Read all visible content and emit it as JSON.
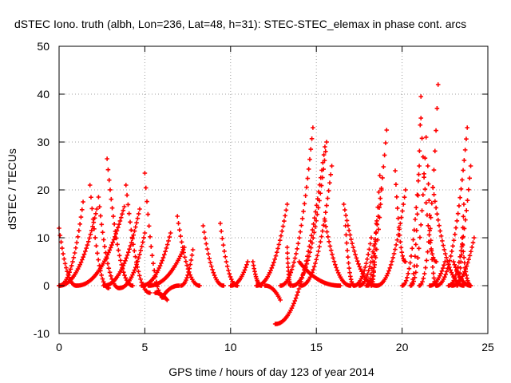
{
  "chart_data": {
    "type": "scatter",
    "title": "dSTEC Iono. truth (albh, Lon=236, Lat=48, h=31): STEC-STEC_elemax in phase cont. arcs",
    "xlabel": "GPS time / hours of day 123 of year 2014",
    "ylabel": "dSTEC  / TECUs",
    "xlim": [
      0,
      25
    ],
    "ylim": [
      -10,
      50
    ],
    "xticks": [
      0,
      5,
      10,
      15,
      20,
      25
    ],
    "yticks": [
      -10,
      0,
      10,
      20,
      30,
      40,
      50
    ],
    "grid": true,
    "marker": "+",
    "series_color": "#ff0000",
    "arcs": [
      [
        0.0,
        12,
        1.0,
        0
      ],
      [
        0.0,
        0,
        1.4,
        17.5
      ],
      [
        0.0,
        0,
        2.2,
        16
      ],
      [
        1.8,
        21,
        2.9,
        -0.5
      ],
      [
        1.0,
        0,
        3.8,
        16.5
      ],
      [
        2.3,
        18.5,
        3.5,
        -0.5
      ],
      [
        2.8,
        26.5,
        4.3,
        0
      ],
      [
        2.6,
        0,
        4.7,
        16
      ],
      [
        3.9,
        21,
        5.3,
        -1.5
      ],
      [
        3.5,
        -0.5,
        5.0,
        11
      ],
      [
        5.0,
        23.5,
        6.1,
        -2.5
      ],
      [
        4.8,
        0,
        6.5,
        11
      ],
      [
        5.2,
        0,
        7.3,
        8
      ],
      [
        6.9,
        14.5,
        8.2,
        0
      ],
      [
        5.6,
        -1.5,
        6.3,
        -3
      ],
      [
        6.0,
        -2.5,
        7.0,
        0
      ],
      [
        7.1,
        0,
        7.8,
        7.5
      ],
      [
        8.4,
        12.5,
        9.6,
        0
      ],
      [
        9.4,
        13,
        10.4,
        0
      ],
      [
        10.0,
        0,
        11.0,
        5
      ],
      [
        11.3,
        5,
        11.8,
        0
      ],
      [
        11.5,
        0,
        13.3,
        17
      ],
      [
        12.0,
        0,
        12.9,
        -3
      ],
      [
        12.6,
        -8,
        15.5,
        29
      ],
      [
        12.9,
        0,
        14.8,
        33
      ],
      [
        13.6,
        0,
        15.6,
        30
      ],
      [
        14.1,
        0,
        15.9,
        25
      ],
      [
        13.5,
        0,
        13.3,
        8
      ],
      [
        14.0,
        5,
        16.4,
        0
      ],
      [
        15.5,
        13.5,
        17.0,
        0
      ],
      [
        16.6,
        17,
        18.5,
        0
      ],
      [
        17.2,
        0,
        18.2,
        10
      ],
      [
        16.7,
        12.5,
        17.2,
        0
      ],
      [
        17.5,
        0,
        19.1,
        32.5
      ],
      [
        17.9,
        0,
        18.7,
        23
      ],
      [
        18.2,
        0,
        18.5,
        13
      ],
      [
        18.0,
        0,
        18.8,
        20
      ],
      [
        18.5,
        0,
        20.2,
        20
      ],
      [
        19.6,
        24,
        20.2,
        5
      ],
      [
        20.5,
        0,
        21.1,
        39.5
      ],
      [
        20.5,
        0,
        21.4,
        31
      ],
      [
        20.0,
        0,
        21.0,
        25
      ],
      [
        21.0,
        0,
        22.1,
        42
      ],
      [
        21.1,
        35,
        22.0,
        5
      ],
      [
        21.5,
        25,
        22.0,
        0
      ],
      [
        21.8,
        20.5,
        23.6,
        0
      ],
      [
        22.0,
        0,
        23.8,
        33
      ],
      [
        22.7,
        0,
        24.0,
        25
      ],
      [
        23.2,
        0,
        23.6,
        17
      ],
      [
        23.5,
        10,
        24.0,
        0
      ],
      [
        23.0,
        5,
        24.0,
        0
      ],
      [
        22.9,
        0,
        24.2,
        10
      ],
      [
        21.6,
        0,
        22.5,
        5
      ]
    ]
  }
}
